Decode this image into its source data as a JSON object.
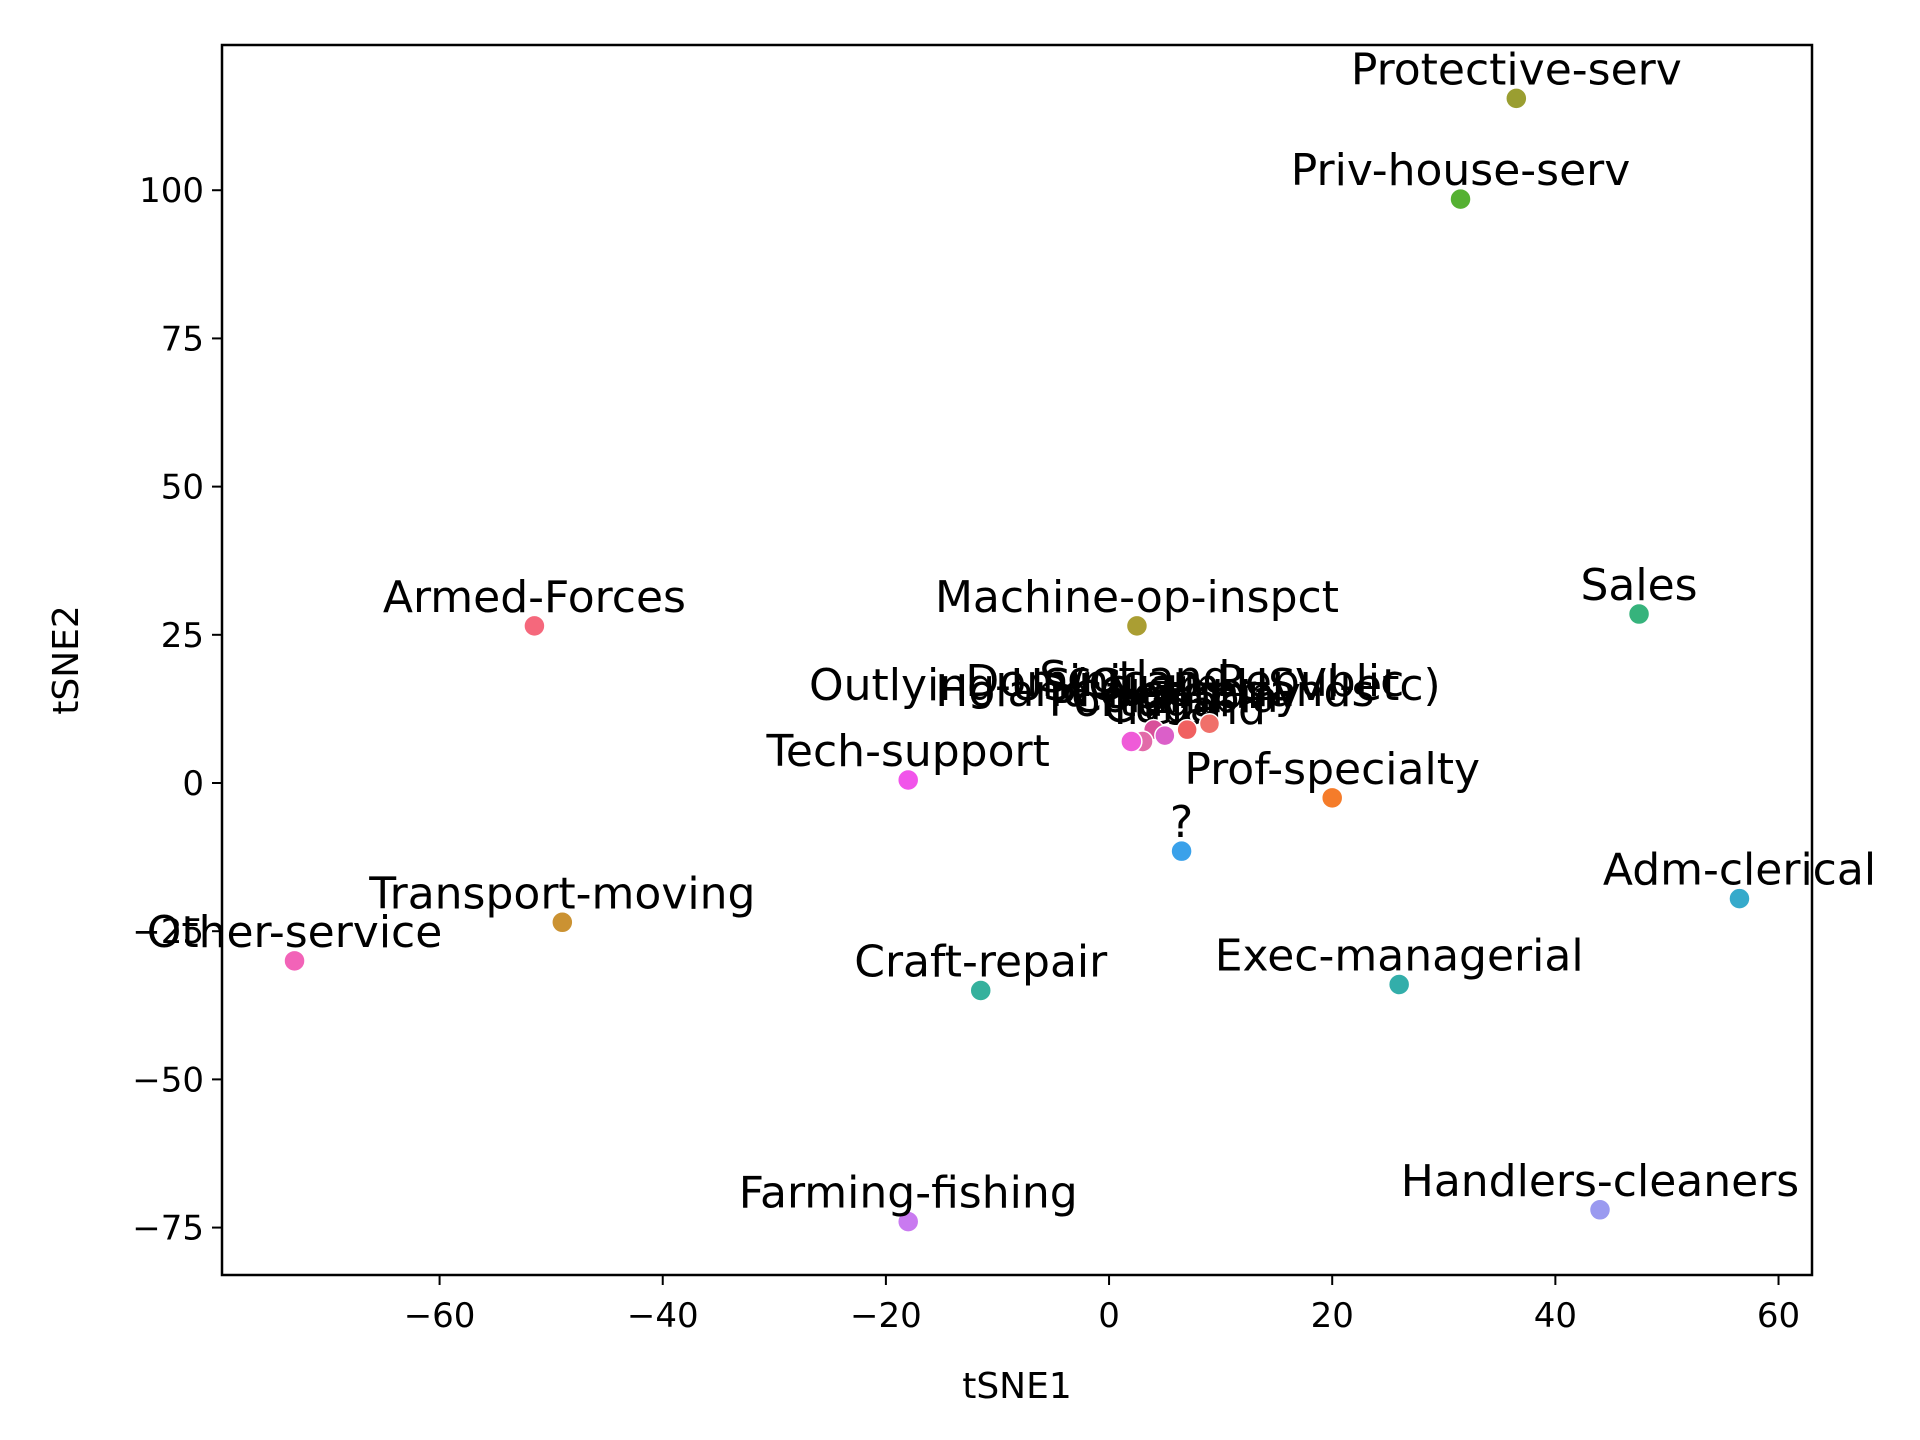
{
  "chart_data": {
    "type": "scatter",
    "title": "",
    "xlabel": "tSNE1",
    "ylabel": "tSNE2",
    "xlim": [
      -79.5,
      63
    ],
    "ylim": [
      -83,
      124.5
    ],
    "xticks": [
      -60,
      -40,
      -20,
      0,
      20,
      40,
      60
    ],
    "yticks": [
      -75,
      -50,
      -25,
      0,
      25,
      50,
      75,
      100
    ],
    "xtick_labels": [
      "−60",
      "−40",
      "−20",
      "0",
      "20",
      "40",
      "60"
    ],
    "ytick_labels": [
      "−75",
      "−50",
      "−25",
      "0",
      "25",
      "50",
      "75",
      "100"
    ],
    "grid": false,
    "legend": "none",
    "points": [
      {
        "label": "Protective-serv",
        "x": 36.5,
        "y": 115.5,
        "color": "#9a9e31"
      },
      {
        "label": "Priv-house-serv",
        "x": 31.5,
        "y": 98.5,
        "color": "#55b132"
      },
      {
        "label": "Sales",
        "x": 47.5,
        "y": 28.5,
        "color": "#36b37c"
      },
      {
        "label": "Armed-Forces",
        "x": -51.5,
        "y": 26.5,
        "color": "#f5687c"
      },
      {
        "label": "Machine-op-inspct",
        "x": 2.5,
        "y": 26.5,
        "color": "#aa9e33"
      },
      {
        "label": "Outlying-US(Guam-USVI-etc)",
        "x": 3,
        "y": 7,
        "color": "#e26ba9"
      },
      {
        "label": "Holand-Netherlands",
        "x": 2,
        "y": 7,
        "color": "#ef5bd8"
      },
      {
        "label": "Tech-support",
        "x": -18,
        "y": 0.5,
        "color": "#f154ea"
      },
      {
        "label": "Prof-specialty",
        "x": 20,
        "y": -2.5,
        "color": "#f57c2a"
      },
      {
        "label": "?",
        "x": 6.5,
        "y": -11.5,
        "color": "#3aa1ea"
      },
      {
        "label": "Adm-clerical",
        "x": 56.5,
        "y": -19.5,
        "color": "#36aacb"
      },
      {
        "label": "Transport-moving",
        "x": -49,
        "y": -23.5,
        "color": "#cb9232"
      },
      {
        "label": "Other-service",
        "x": -73,
        "y": -30,
        "color": "#f263b8"
      },
      {
        "label": "Craft-repair",
        "x": -11.5,
        "y": -35,
        "color": "#35b19d"
      },
      {
        "label": "Exec-managerial",
        "x": 26,
        "y": -34,
        "color": "#33aeaa"
      },
      {
        "label": "Farming-fishing",
        "x": -18,
        "y": -74,
        "color": "#c97af0"
      },
      {
        "label": "Handlers-cleaners",
        "x": 44,
        "y": -72,
        "color": "#9a9af0"
      }
    ],
    "cluster_points": [
      {
        "x": 3,
        "y": 7,
        "color": "#e26ba9"
      },
      {
        "x": 2,
        "y": 7,
        "color": "#ef5bd8"
      },
      {
        "x": 4,
        "y": 9,
        "color": "#d84f9a"
      },
      {
        "x": 7,
        "y": 9,
        "color": "#f06060"
      },
      {
        "x": 5,
        "y": 8,
        "color": "#db5fc9"
      },
      {
        "x": 9,
        "y": 10,
        "color": "#f0706a"
      }
    ],
    "cluster_labels": [
      "Outlying-US(Guam-USVI-etc)",
      "Holand-Netherlands",
      "Dominican-Republic",
      "Portugal",
      "Columbia",
      "Germany",
      "Cuba",
      "Ireland",
      "Scotland"
    ]
  }
}
